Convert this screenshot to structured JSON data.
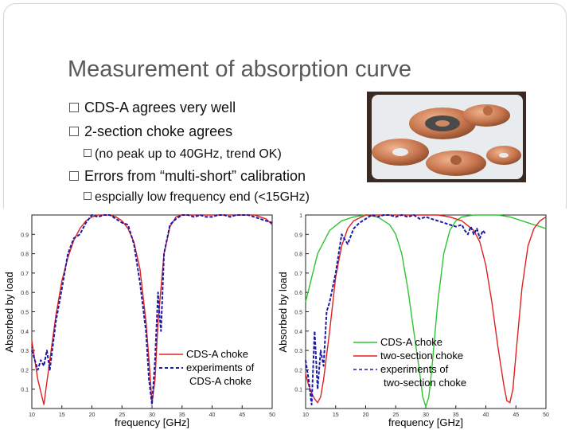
{
  "slide": {
    "title": "Measurement of absorption curve",
    "bullets": [
      {
        "text": "CDS-A  agrees very well",
        "level": 1
      },
      {
        "text": "2-section choke agrees",
        "level": 1
      },
      {
        "text": "(no peak up to 40GHz, trend OK)",
        "level": 2
      },
      {
        "text": "Errors from “multi-short” calibration",
        "level": 1
      },
      {
        "text": "espcially low frequency end (<15GHz)",
        "level": 2
      }
    ],
    "photo": {
      "icon": "copper-choke-parts-photo"
    }
  },
  "colors": {
    "red": "#e02020",
    "green": "#2ec42e",
    "blue": "#1a1aa6",
    "copper": "#c77a55"
  },
  "chart_data": [
    {
      "type": "line",
      "title": "",
      "xlabel": "frequency [GHz]",
      "ylabel": "Absorbed by load",
      "xlim": [
        10,
        50
      ],
      "ylim": [
        0,
        1
      ],
      "xticks": [
        "10",
        "15",
        "20",
        "25",
        "30",
        "35",
        "40",
        "45",
        "50"
      ],
      "yticks": [
        "0.1",
        "0.2",
        "0.3",
        "0.4",
        "0.5",
        "0.6",
        "0.7",
        "0.8",
        "0.9"
      ],
      "legend": [
        "CDS-A choke",
        "experiments of",
        "CDS-A choke"
      ],
      "series": [
        {
          "name": "CDS-A choke",
          "color": "red",
          "style": "solid",
          "x": [
            10,
            11,
            12,
            13,
            14,
            15,
            16,
            17,
            18,
            19,
            20,
            21,
            22,
            23,
            24,
            25,
            26,
            27,
            28,
            29,
            29.5,
            30,
            30.5,
            31,
            32,
            33,
            34,
            35,
            36,
            37,
            38,
            39,
            40,
            41,
            42,
            43,
            44,
            45,
            46,
            47,
            48,
            49,
            50
          ],
          "y": [
            0.35,
            0.15,
            0.02,
            0.25,
            0.48,
            0.66,
            0.78,
            0.87,
            0.93,
            0.97,
            0.99,
            1.0,
            1.0,
            1.0,
            0.99,
            0.97,
            0.93,
            0.86,
            0.72,
            0.45,
            0.25,
            0.03,
            0.15,
            0.45,
            0.8,
            0.94,
            0.99,
            1.0,
            1.0,
            1.0,
            1.0,
            1.0,
            1.0,
            1.0,
            1.0,
            1.0,
            1.0,
            1.0,
            1.0,
            1.0,
            0.99,
            0.98,
            0.95
          ]
        },
        {
          "name": "experiments of CDS-A choke",
          "color": "blue",
          "style": "dashed",
          "x": [
            10,
            11,
            11.5,
            12,
            12.5,
            13,
            14,
            15,
            16,
            17,
            18,
            19,
            20,
            21,
            22,
            23,
            24,
            25,
            26,
            27,
            28,
            29,
            29.5,
            30,
            30.5,
            31,
            31.2,
            31.5,
            32,
            33,
            34,
            35,
            36,
            37,
            38,
            39,
            40,
            41,
            42,
            43,
            44,
            45,
            46,
            47,
            48,
            49,
            50
          ],
          "y": [
            0.3,
            0.2,
            0.25,
            0.22,
            0.3,
            0.2,
            0.45,
            0.62,
            0.8,
            0.88,
            0.9,
            0.96,
            1.0,
            0.99,
            1.0,
            1.0,
            0.98,
            0.96,
            0.95,
            0.85,
            0.65,
            0.4,
            0.15,
            0.02,
            0.25,
            0.6,
            0.5,
            0.4,
            0.8,
            0.95,
            0.98,
            1.0,
            1.0,
            0.99,
            1.0,
            0.99,
            0.99,
            1.0,
            1.0,
            0.99,
            1.0,
            1.0,
            1.0,
            0.99,
            0.98,
            0.97,
            0.96
          ]
        }
      ]
    },
    {
      "type": "line",
      "title": "",
      "xlabel": "frequency [GHz]",
      "ylabel": "Absorbed by load",
      "xlim": [
        10,
        50
      ],
      "ylim": [
        0,
        1
      ],
      "xticks": [
        "10",
        "15",
        "20",
        "25",
        "30",
        "35",
        "40",
        "45",
        "50"
      ],
      "yticks": [
        "0.1",
        "0.2",
        "0.3",
        "0.4",
        "0.5",
        "0.6",
        "0.7",
        "0.8",
        "0.9",
        "1"
      ],
      "legend": [
        "CDS-A choke",
        "two-section choke",
        "experiments of",
        "two-section choke"
      ],
      "series": [
        {
          "name": "CDS-A choke",
          "color": "green",
          "style": "solid",
          "x": [
            10,
            12,
            14,
            16,
            18,
            20,
            22,
            24,
            25,
            26,
            27,
            28,
            29,
            29.5,
            30,
            30.5,
            31,
            32,
            33,
            34,
            35,
            36,
            38,
            40,
            42,
            44,
            46,
            48,
            50
          ],
          "y": [
            0.55,
            0.8,
            0.92,
            0.97,
            0.99,
            1.0,
            0.99,
            0.95,
            0.9,
            0.8,
            0.62,
            0.4,
            0.18,
            0.06,
            0.01,
            0.06,
            0.2,
            0.55,
            0.8,
            0.92,
            0.97,
            0.99,
            1.0,
            1.0,
            1.0,
            0.99,
            0.97,
            0.95,
            0.93
          ]
        },
        {
          "name": "two-section choke",
          "color": "red",
          "style": "solid",
          "x": [
            10,
            10.5,
            11,
            11.5,
            12,
            12.5,
            13,
            14,
            15,
            16,
            17,
            18,
            20,
            22,
            24,
            26,
            28,
            30,
            32,
            34,
            36,
            38,
            39,
            40,
            41,
            42,
            43,
            43.5,
            44,
            44.5,
            45,
            46,
            47,
            48,
            49,
            50
          ],
          "y": [
            0.18,
            0.12,
            0.08,
            0.05,
            0.03,
            0.06,
            0.15,
            0.4,
            0.68,
            0.84,
            0.93,
            0.97,
            1.0,
            1.0,
            1.0,
            1.0,
            1.0,
            1.0,
            1.0,
            0.99,
            0.97,
            0.92,
            0.86,
            0.74,
            0.55,
            0.32,
            0.12,
            0.04,
            0.03,
            0.1,
            0.28,
            0.62,
            0.84,
            0.93,
            0.97,
            0.99
          ]
        },
        {
          "name": "experiments of two-section choke",
          "color": "blue",
          "style": "dashed",
          "x": [
            10,
            10.5,
            11,
            11.5,
            12,
            12.5,
            13,
            13.5,
            14,
            15,
            16,
            17,
            18,
            19,
            20,
            21,
            22,
            23,
            24,
            25,
            26,
            27,
            28,
            29,
            30,
            31,
            32,
            33,
            34,
            35,
            36,
            36.5,
            37,
            37.5,
            38,
            38.5,
            39,
            39.5,
            40
          ],
          "y": [
            0.25,
            0.15,
            0.02,
            0.4,
            0.1,
            0.3,
            0.22,
            0.5,
            0.55,
            0.7,
            0.9,
            0.85,
            0.93,
            0.96,
            0.98,
            1.0,
            0.99,
            1.0,
            1.0,
            0.99,
            1.0,
            0.99,
            1.0,
            0.98,
            0.99,
            0.98,
            0.97,
            0.96,
            0.95,
            0.94,
            0.95,
            0.92,
            0.9,
            0.94,
            0.9,
            0.93,
            0.88,
            0.92,
            0.9
          ]
        }
      ]
    }
  ]
}
